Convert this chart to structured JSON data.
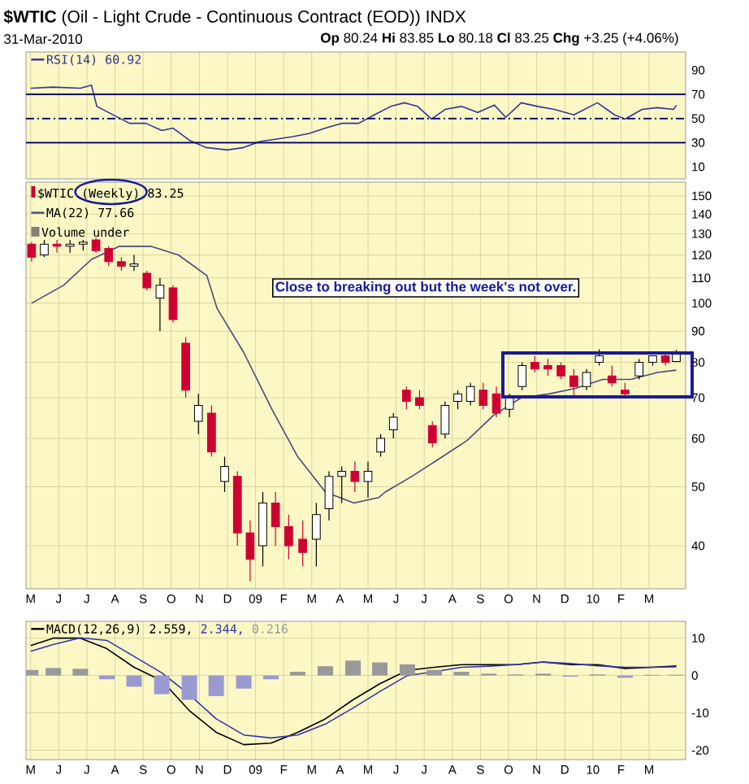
{
  "chart_data": [
    {
      "type": "line",
      "title": "**$WTIC** (Oil - Light Crude - Continuous Contract (EOD)) INDX",
      "subtitle": "31-Mar-2010",
      "annotations": [
        "**Op** 80.24 **Hi** 83.85 **Lo** 80.18 **Cl** 83.25 **Chg** +3.25 (+4.06%)"
      ],
      "x": [
        "2008-05-01",
        "2008-05-26",
        "2008-06-24",
        "2008-07-06",
        "2008-07-12",
        "2008-07-30",
        "2008-08-17",
        "2008-09-04",
        "2008-09-21",
        "2008-10-03",
        "2008-10-21",
        "2008-11-08",
        "2008-12-01",
        "2008-12-19",
        "2009-01-06",
        "2009-01-24",
        "2009-02-10",
        "2009-02-26",
        "2009-03-16",
        "2009-04-03",
        "2009-04-21",
        "2009-05-08",
        "2009-05-26",
        "2009-06-10",
        "2009-06-24",
        "2009-07-09",
        "2009-07-24",
        "2009-08-11",
        "2009-08-29",
        "2009-09-16",
        "2009-09-28",
        "2009-10-15",
        "2009-11-02",
        "2009-11-20",
        "2009-12-11",
        "2010-01-06",
        "2010-01-25",
        "2010-02-05",
        "2010-02-22",
        "2010-03-10",
        "2010-03-28",
        "2010-03-31"
      ],
      "series": [
        {
          "name": "RSI(14) 60.92",
          "color": "#333399",
          "values": [
            75,
            76,
            75,
            77.5,
            60,
            53,
            46,
            46,
            40,
            42,
            32,
            26,
            24,
            26,
            31,
            33,
            35,
            37.5,
            42,
            46,
            46,
            53,
            60,
            63,
            60,
            49.5,
            57.5,
            60,
            55,
            61,
            51,
            63,
            60,
            57.5,
            53,
            63,
            53,
            49.5,
            57.5,
            59,
            57.5,
            60.92
          ]
        }
      ],
      "xlim": [
        "2008-04-26",
        "2010-04-10"
      ],
      "xticks": [
        {
          "value": "2008-05",
          "label": null
        },
        {
          "value": "2008-06",
          "label": null
        },
        {
          "value": "2008-07",
          "label": null
        },
        {
          "value": "2008-08",
          "label": null
        },
        {
          "value": "2008-09",
          "label": null
        },
        {
          "value": "2008-10",
          "label": null
        },
        {
          "value": "2008-11",
          "label": null
        },
        {
          "value": "2008-12",
          "label": null
        },
        {
          "value": "2009-01",
          "label": null
        },
        {
          "value": "2009-02",
          "label": null
        },
        {
          "value": "2009-03",
          "label": null
        },
        {
          "value": "2009-04",
          "label": null
        },
        {
          "value": "2009-05",
          "label": null
        },
        {
          "value": "2009-06",
          "label": null
        },
        {
          "value": "2009-07",
          "label": null
        },
        {
          "value": "2009-08",
          "label": null
        },
        {
          "value": "2009-09",
          "label": null
        },
        {
          "value": "2009-10",
          "label": null
        },
        {
          "value": "2009-11",
          "label": null
        },
        {
          "value": "2009-12",
          "label": null
        },
        {
          "value": "2010-01",
          "label": null
        },
        {
          "value": "2010-02",
          "label": null
        },
        {
          "value": "2010-03",
          "label": null
        }
      ],
      "ylim": [
        0,
        105
      ],
      "yticks": [
        10,
        30,
        50,
        70,
        90
      ],
      "ref_lines": [
        {
          "axis": "y",
          "value": 70,
          "color": "#000066"
        },
        {
          "axis": "y",
          "value": 30,
          "color": "#000066"
        },
        {
          "axis": "y",
          "value": 50,
          "color": "#000066",
          "line_style": "dashed"
        }
      ],
      "grid": "x",
      "legend": "top left",
      "tick_labels": "y"
    },
    {
      "type": "candlestick",
      "log": "y",
      "annotations": [
        "Volume under",
        "Close to breaking out but the week's not over."
      ],
      "series": [
        {
          "name": "$WTIC (Weekly) 83.25",
          "type": "candlestick",
          "color": "#cc0033",
          "colors": [
            "#cc0033",
            "#ffffff",
            "#cc0033",
            "#ffffff",
            "#ffffff",
            "#cc0033",
            "#cc0033",
            "#cc0033",
            "#ffffff",
            "#cc0033",
            "#ffffff",
            "#cc0033",
            "#cc0033",
            "#ffffff",
            "#cc0033",
            "#ffffff",
            "#cc0033",
            "#cc0033",
            "#ffffff",
            "#cc0033",
            "#cc0033",
            "#cc0033",
            "#ffffff",
            "#ffffff",
            "#ffffff",
            "#cc0033",
            "#ffffff",
            "#ffffff",
            "#ffffff",
            "#cc0033",
            "#cc0033",
            "#cc0033",
            "#ffffff",
            "#ffffff",
            "#ffffff",
            "#cc0033",
            "#cc0033",
            "#ffffff",
            "#ffffff",
            "#cc0033",
            "#cc0033",
            "#cc0033",
            "#cc0033",
            "#ffffff",
            "#ffffff",
            "#cc0033",
            "#cc0033",
            "#ffffff",
            "#ffffff",
            "#cc0033",
            "#ffffff"
          ],
          "x": [
            "2008-05-02",
            "2008-05-16",
            "2008-05-30",
            "2008-06-13",
            "2008-06-27",
            "2008-07-11",
            "2008-07-25",
            "2008-08-08",
            "2008-08-22",
            "2008-09-05",
            "2008-09-19",
            "2008-10-03",
            "2008-10-17",
            "2008-10-31",
            "2008-11-14",
            "2008-11-28",
            "2008-12-12",
            "2008-12-26",
            "2009-01-09",
            "2009-01-23",
            "2009-02-06",
            "2009-02-20",
            "2009-03-06",
            "2009-03-20",
            "2009-04-03",
            "2009-04-17",
            "2009-05-01",
            "2009-05-15",
            "2009-05-29",
            "2009-06-12",
            "2009-06-26",
            "2009-07-10",
            "2009-07-24",
            "2009-08-07",
            "2009-08-21",
            "2009-09-04",
            "2009-09-18",
            "2009-10-02",
            "2009-10-16",
            "2009-10-30",
            "2009-11-13",
            "2009-11-27",
            "2009-12-11",
            "2009-12-25",
            "2010-01-08",
            "2010-01-22",
            "2010-02-05",
            "2010-02-19",
            "2010-03-05",
            "2010-03-19",
            "2010-03-31"
          ],
          "ohlc": [
            [
              125,
              126,
              117,
              119
            ],
            [
              120,
              127,
              119,
              125
            ],
            [
              125,
              127,
              121,
              124
            ],
            [
              124,
              127,
              121,
              125
            ],
            [
              125,
              127,
              122,
              126
            ],
            [
              127,
              128,
              121,
              122
            ],
            [
              123,
              124,
              115,
              117
            ],
            [
              117,
              119,
              113,
              115
            ],
            [
              115,
              120,
              113,
              116
            ],
            [
              112,
              113,
              105,
              106
            ],
            [
              102,
              110,
              90,
              107
            ],
            [
              106,
              107,
              93,
              94
            ],
            [
              86,
              88,
              70,
              72
            ],
            [
              64,
              71,
              61,
              68
            ],
            [
              66,
              68,
              56,
              57
            ],
            [
              51,
              56,
              49,
              54
            ],
            [
              52,
              53,
              40,
              42
            ],
            [
              42,
              44,
              35,
              38
            ],
            [
              40,
              49,
              37,
              47
            ],
            [
              47,
              49,
              40,
              43
            ],
            [
              43,
              45,
              38,
              40
            ],
            [
              41,
              44,
              37,
              39
            ],
            [
              41,
              47,
              37,
              45
            ],
            [
              46,
              53,
              44,
              52
            ],
            [
              52,
              54,
              47,
              53
            ],
            [
              53,
              55,
              49,
              51
            ],
            [
              51,
              55,
              48,
              53
            ],
            [
              57,
              61,
              56,
              60
            ],
            [
              62,
              66,
              60,
              65
            ],
            [
              72,
              73,
              67,
              69
            ],
            [
              70,
              72,
              67,
              68
            ],
            [
              63,
              64,
              58,
              59
            ],
            [
              61,
              69,
              60,
              68
            ],
            [
              69,
              72,
              67,
              71
            ],
            [
              69,
              74,
              68,
              73
            ],
            [
              72,
              74,
              67,
              68
            ],
            [
              71,
              73,
              65,
              66
            ],
            [
              67,
              71,
              65,
              70
            ],
            [
              73,
              80,
              72,
              79
            ],
            [
              80,
              82,
              77,
              78
            ],
            [
              79,
              81,
              76,
              78
            ],
            [
              79,
              80,
              75,
              76
            ],
            [
              76,
              78,
              70,
              73
            ],
            [
              73,
              78,
              72,
              77
            ],
            [
              80,
              84,
              79,
              82
            ],
            [
              76,
              79,
              73,
              74
            ],
            [
              72,
              74,
              70,
              71
            ],
            [
              76,
              81,
              75,
              80
            ],
            [
              80,
              82,
              79,
              82
            ],
            [
              82,
              83,
              79,
              80
            ],
            [
              80.24,
              83.85,
              80.18,
              83.25
            ]
          ]
        },
        {
          "name": "MA(22) 77.66",
          "type": "line",
          "color": "#4a4a7a",
          "x": [
            "2008-05-02",
            "2008-06-06",
            "2008-07-06",
            "2008-08-06",
            "2008-09-09",
            "2008-10-09",
            "2008-11-09",
            "2008-11-20",
            "2008-12-19",
            "2009-01-19",
            "2009-02-15",
            "2009-03-16",
            "2009-04-16",
            "2009-05-13",
            "2009-05-20",
            "2009-06-18",
            "2009-07-17",
            "2009-08-17",
            "2009-09-15",
            "2009-10-15",
            "2009-11-14",
            "2009-12-13",
            "2010-01-12",
            "2010-02-11",
            "2010-03-10",
            "2010-03-31"
          ],
          "values": [
            100,
            107,
            118,
            124,
            124,
            120,
            111,
            98,
            83,
            67,
            56,
            49,
            47,
            48,
            49,
            52,
            55.5,
            59.5,
            65.5,
            70,
            71,
            72.5,
            75,
            75,
            77,
            77.66
          ]
        }
      ],
      "xlim": [
        "2008-04-26",
        "2010-04-10"
      ],
      "xticks": [
        {
          "value": "2008-05",
          "label": "M"
        },
        {
          "value": "2008-06",
          "label": "J"
        },
        {
          "value": "2008-07",
          "label": "J"
        },
        {
          "value": "2008-08",
          "label": "A"
        },
        {
          "value": "2008-09",
          "label": "S"
        },
        {
          "value": "2008-10",
          "label": "O"
        },
        {
          "value": "2008-11",
          "label": "N"
        },
        {
          "value": "2008-12",
          "label": "D"
        },
        {
          "value": "2009-01",
          "label": "09"
        },
        {
          "value": "2009-02",
          "label": "F"
        },
        {
          "value": "2009-03",
          "label": "M"
        },
        {
          "value": "2009-04",
          "label": "A"
        },
        {
          "value": "2009-05",
          "label": "M"
        },
        {
          "value": "2009-06",
          "label": "J"
        },
        {
          "value": "2009-07",
          "label": "J"
        },
        {
          "value": "2009-08",
          "label": "A"
        },
        {
          "value": "2009-09",
          "label": "S"
        },
        {
          "value": "2009-10",
          "label": "O"
        },
        {
          "value": "2009-11",
          "label": "N"
        },
        {
          "value": "2009-12",
          "label": "D"
        },
        {
          "value": "2010-01",
          "label": "10"
        },
        {
          "value": "2010-02",
          "label": "F"
        },
        {
          "value": "2010-03",
          "label": "M"
        }
      ],
      "ylim": [
        34,
        158
      ],
      "yticks": [
        40,
        50,
        60,
        70,
        80,
        90,
        100,
        110,
        120,
        130,
        140,
        150
      ],
      "grid": true,
      "legend": "top left"
    },
    {
      "type": "line",
      "x": [
        "2008-05-01",
        "2008-05-26",
        "2008-06-24",
        "2008-07-23",
        "2008-08-22",
        "2008-09-21",
        "2008-10-21",
        "2008-11-19",
        "2008-12-19",
        "2009-01-18",
        "2009-02-15",
        "2009-03-16",
        "2009-04-15",
        "2009-05-14",
        "2009-06-13",
        "2009-07-12",
        "2009-08-11",
        "2009-09-10",
        "2009-10-09",
        "2009-11-08",
        "2009-12-07",
        "2010-01-06",
        "2010-02-05",
        "2010-03-04",
        "2010-03-31"
      ],
      "series": [
        {
          "name": "MACD(12,26,9) 2.559,",
          "color": "#000000",
          "values": [
            8,
            10,
            10,
            7.2,
            2.2,
            -1.4,
            -9.4,
            -15.2,
            -18.5,
            -18.1,
            -15.2,
            -11.6,
            -6.5,
            -2.2,
            1.4,
            2.2,
            2.9,
            2.9,
            2.9,
            3.6,
            2.9,
            2.9,
            1.9,
            2.2,
            2.559
          ]
        },
        {
          "name": "2.344,",
          "color": "#3333aa",
          "values": [
            6.5,
            8.3,
            10.1,
            9.4,
            5.1,
            0.7,
            -5.1,
            -11.6,
            -15.9,
            -16.7,
            -15.9,
            -13,
            -8.7,
            -4.3,
            0,
            1,
            2.2,
            2.5,
            2.9,
            3.6,
            3.2,
            2.6,
            2.2,
            2.2,
            2.344
          ]
        },
        {
          "name": "0.216",
          "type": "bar",
          "color": "#999999",
          "colors": [
            "#999999",
            "#999999",
            "#999999",
            "#9a9ad0",
            "#9a9ad0",
            "#9a9ad0",
            "#9a9ad0",
            "#9a9ad0",
            "#9a9ad0",
            "#9a9ad0",
            "#999999",
            "#999999",
            "#999999",
            "#999999",
            "#999999",
            "#999999",
            "#999999",
            "#999999",
            "#999999",
            "#999999",
            "#9a9ad0",
            "#999999",
            "#9a9ad0",
            "#999999",
            "#999999"
          ],
          "values": [
            1.5,
            2,
            1.8,
            -1,
            -3,
            -5,
            -6.5,
            -5.5,
            -3.5,
            -1,
            1,
            2.5,
            4,
            3.5,
            3,
            1.5,
            1,
            0.5,
            0.3,
            0.5,
            -0.3,
            0.3,
            -0.6,
            0.2,
            0.216
          ]
        }
      ],
      "xlim": [
        "2008-04-26",
        "2010-04-10"
      ],
      "xticks": [
        {
          "value": "2008-05",
          "label": "M"
        },
        {
          "value": "2008-06",
          "label": "J"
        },
        {
          "value": "2008-07",
          "label": "J"
        },
        {
          "value": "2008-08",
          "label": "A"
        },
        {
          "value": "2008-09",
          "label": "S"
        },
        {
          "value": "2008-10",
          "label": "O"
        },
        {
          "value": "2008-11",
          "label": "N"
        },
        {
          "value": "2008-12",
          "label": "D"
        },
        {
          "value": "2009-01",
          "label": "09"
        },
        {
          "value": "2009-02",
          "label": "F"
        },
        {
          "value": "2009-03",
          "label": "M"
        },
        {
          "value": "2009-04",
          "label": "A"
        },
        {
          "value": "2009-05",
          "label": "M"
        },
        {
          "value": "2009-06",
          "label": "J"
        },
        {
          "value": "2009-07",
          "label": "J"
        },
        {
          "value": "2009-08",
          "label": "A"
        },
        {
          "value": "2009-09",
          "label": "S"
        },
        {
          "value": "2009-10",
          "label": "O"
        },
        {
          "value": "2009-11",
          "label": "N"
        },
        {
          "value": "2009-12",
          "label": "D"
        },
        {
          "value": "2010-01",
          "label": "10"
        },
        {
          "value": "2010-02",
          "label": "F"
        },
        {
          "value": "2010-03",
          "label": "M"
        }
      ],
      "ylim": [
        -22.5,
        14.5
      ],
      "yticks": [
        -20,
        -10,
        0,
        10
      ],
      "grid": true,
      "legend": "top left"
    }
  ]
}
